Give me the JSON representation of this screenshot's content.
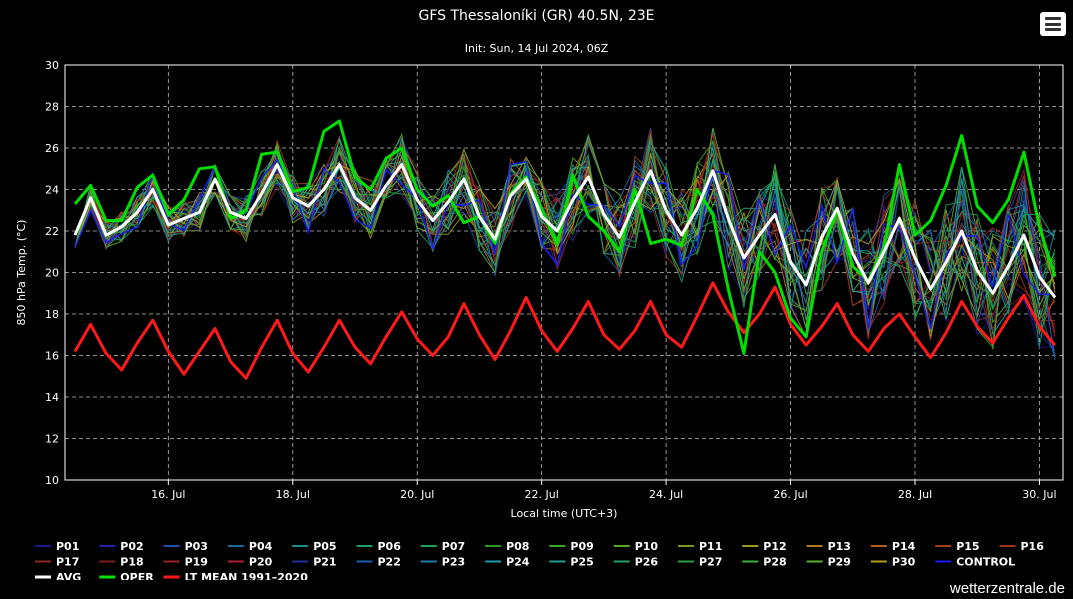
{
  "page": {
    "title": "GFS Thessaloníki (GR) 40.5N, 23E",
    "subtitle": "Init: Sun, 14 Jul 2024, 06Z",
    "footer": "wetterzentrale.de",
    "menu_icon": "hamburger-menu-icon"
  },
  "chart_data": {
    "type": "line",
    "title": "GFS Thessaloníki (GR) 40.5N, 23E",
    "subtitle": "Init: Sun, 14 Jul 2024, 06Z",
    "xlabel": "Local time (UTC+3)",
    "ylabel": "850 hPa Temp. (°C)",
    "xlim": [
      0,
      64
    ],
    "ylim": [
      10,
      30
    ],
    "yticks": [
      10,
      12,
      14,
      16,
      18,
      20,
      22,
      24,
      26,
      28,
      30
    ],
    "xticks": [
      {
        "i": 6,
        "label": "16. Jul"
      },
      {
        "i": 14,
        "label": "18. Jul"
      },
      {
        "i": 22,
        "label": "20. Jul"
      },
      {
        "i": 30,
        "label": "22. Jul"
      },
      {
        "i": 38,
        "label": "24. Jul"
      },
      {
        "i": 46,
        "label": "26. Jul"
      },
      {
        "i": 54,
        "label": "28. Jul"
      },
      {
        "i": 62,
        "label": "30. Jul"
      }
    ],
    "x_step_hours": 6,
    "grid": true,
    "legend_position": "bottom",
    "members": [
      "P01",
      "P02",
      "P03",
      "P04",
      "P05",
      "P06",
      "P07",
      "P08",
      "P09",
      "P10",
      "P11",
      "P12",
      "P13",
      "P14",
      "P15",
      "P16",
      "P17",
      "P18",
      "P19",
      "P20",
      "P21",
      "P22",
      "P23",
      "P24",
      "P25",
      "P26",
      "P27",
      "P28",
      "P29",
      "P30",
      "CONTROL"
    ],
    "member_colors": [
      "#1a1a8c",
      "#2222b0",
      "#1f4fa8",
      "#1e6b9c",
      "#1f8a8a",
      "#1d9c6a",
      "#1ea24e",
      "#2b9c2b",
      "#3aa81f",
      "#5aa81f",
      "#7a9a1f",
      "#9a9a1f",
      "#b07a1f",
      "#b0601f",
      "#a0401f",
      "#a0301f",
      "#8c2a1f",
      "#7a1f1f",
      "#9a1f1f",
      "#b01f3a",
      "#2a2aa0",
      "#1f5ab0",
      "#1f7ab0",
      "#1f9ab0",
      "#1fa08a",
      "#1fa06a",
      "#2aa04a",
      "#3ab03a",
      "#5ab02a",
      "#b0a01f",
      "#1a1af0"
    ],
    "series": [
      {
        "name": "AVG",
        "color": "#ffffff",
        "width": 3,
        "values": [
          21.8,
          23.6,
          21.8,
          22.2,
          22.9,
          24.0,
          22.3,
          22.6,
          22.9,
          24.5,
          22.9,
          22.6,
          23.8,
          25.2,
          23.6,
          23.2,
          24.0,
          25.2,
          23.6,
          23.0,
          24.2,
          25.2,
          23.5,
          22.5,
          23.4,
          24.5,
          22.7,
          21.6,
          23.7,
          24.5,
          22.7,
          22.0,
          23.5,
          24.6,
          22.8,
          21.7,
          23.4,
          24.9,
          23.0,
          21.8,
          23.1,
          24.9,
          22.6,
          20.7,
          21.8,
          22.8,
          20.5,
          19.4,
          21.7,
          23.1,
          20.9,
          19.5,
          21.0,
          22.6,
          20.7,
          19.2,
          20.5,
          22.0,
          20.1,
          19.0,
          20.3,
          21.8,
          19.8,
          18.8
        ]
      },
      {
        "name": "OPER",
        "color": "#00e000",
        "width": 3,
        "values": [
          23.3,
          24.2,
          22.5,
          22.5,
          24.1,
          24.7,
          22.8,
          23.5,
          25.0,
          25.1,
          22.6,
          23.0,
          25.7,
          25.8,
          23.9,
          24.1,
          26.8,
          27.3,
          24.6,
          24.0,
          25.5,
          26.0,
          24.0,
          23.2,
          23.7,
          22.4,
          22.7,
          21.4,
          23.8,
          24.6,
          23.0,
          21.4,
          24.7,
          22.7,
          22.0,
          21.0,
          24.0,
          21.4,
          21.6,
          21.3,
          24.0,
          22.8,
          19.2,
          16.1,
          21.0,
          20.0,
          17.8,
          16.9,
          21.0,
          23.0,
          20.3,
          19.6,
          21.2,
          25.2,
          21.8,
          22.5,
          24.2,
          26.6,
          23.2,
          22.4,
          23.5,
          25.8,
          22.2,
          19.8
        ]
      },
      {
        "name": "LT MEAN 1991-2020",
        "color": "#ff1a1a",
        "width": 3,
        "values": [
          16.2,
          17.5,
          16.1,
          15.3,
          16.6,
          17.7,
          16.2,
          15.1,
          16.2,
          17.3,
          15.7,
          14.9,
          16.4,
          17.7,
          16.1,
          15.2,
          16.4,
          17.7,
          16.4,
          15.6,
          16.9,
          18.1,
          16.8,
          16.0,
          16.9,
          18.5,
          17.0,
          15.8,
          17.2,
          18.8,
          17.2,
          16.2,
          17.3,
          18.6,
          17.0,
          16.3,
          17.2,
          18.6,
          17.0,
          16.4,
          17.9,
          19.5,
          18.1,
          17.1,
          18.0,
          19.3,
          17.5,
          16.5,
          17.4,
          18.5,
          17.0,
          16.2,
          17.3,
          18.0,
          16.9,
          15.9,
          17.1,
          18.6,
          17.4,
          16.6,
          17.8,
          18.9,
          17.4,
          16.5
        ]
      }
    ]
  },
  "legend": {
    "items": [
      {
        "label": "P01",
        "color": "#1a1a8c"
      },
      {
        "label": "P02",
        "color": "#2222b0"
      },
      {
        "label": "P03",
        "color": "#1f4fa8"
      },
      {
        "label": "P04",
        "color": "#1e6b9c"
      },
      {
        "label": "P05",
        "color": "#1f8a8a"
      },
      {
        "label": "P06",
        "color": "#1d9c6a"
      },
      {
        "label": "P07",
        "color": "#1ea24e"
      },
      {
        "label": "P08",
        "color": "#2b9c2b"
      },
      {
        "label": "P09",
        "color": "#3aa81f"
      },
      {
        "label": "P10",
        "color": "#5aa81f"
      },
      {
        "label": "P11",
        "color": "#7a9a1f"
      },
      {
        "label": "P12",
        "color": "#9a9a1f"
      },
      {
        "label": "P13",
        "color": "#b07a1f"
      },
      {
        "label": "P14",
        "color": "#b0601f"
      },
      {
        "label": "P15",
        "color": "#a0401f"
      },
      {
        "label": "P16",
        "color": "#a0301f"
      },
      {
        "label": "P17",
        "color": "#8c2a1f"
      },
      {
        "label": "P18",
        "color": "#7a1f1f"
      },
      {
        "label": "P19",
        "color": "#9a1f1f"
      },
      {
        "label": "P20",
        "color": "#b01f3a"
      },
      {
        "label": "P21",
        "color": "#2a2aa0"
      },
      {
        "label": "P22",
        "color": "#1f5ab0"
      },
      {
        "label": "P23",
        "color": "#1f7ab0"
      },
      {
        "label": "P24",
        "color": "#1f9ab0"
      },
      {
        "label": "P25",
        "color": "#1fa08a"
      },
      {
        "label": "P26",
        "color": "#1fa06a"
      },
      {
        "label": "P27",
        "color": "#2aa04a"
      },
      {
        "label": "P28",
        "color": "#3ab03a"
      },
      {
        "label": "P29",
        "color": "#5ab02a"
      },
      {
        "label": "P30",
        "color": "#b0a01f"
      },
      {
        "label": "CONTROL",
        "color": "#1a1af0"
      },
      {
        "label": "AVG",
        "color": "#ffffff"
      },
      {
        "label": "OPER",
        "color": "#00e000"
      },
      {
        "label": "LT MEAN 1991–2020",
        "color": "#ff1a1a"
      }
    ]
  }
}
